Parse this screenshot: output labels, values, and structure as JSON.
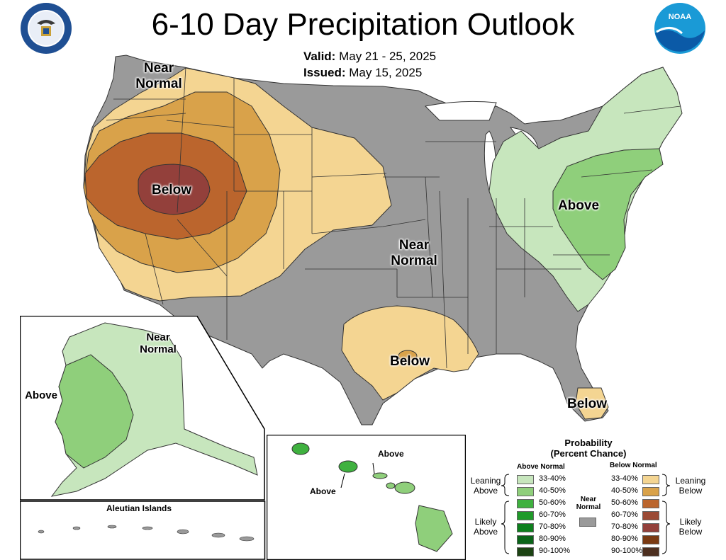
{
  "header": {
    "title": "6-10 Day Precipitation Outlook",
    "valid_label": "Valid:",
    "valid_value": "May 21 - 25, 2025",
    "issued_label": "Issued:",
    "issued_value": "May 15, 2025"
  },
  "logos": {
    "left": "department-of-commerce-seal",
    "right": "noaa-logo",
    "right_text": "NOAA"
  },
  "map_labels": {
    "nw_near_normal": [
      "Near",
      "Normal"
    ],
    "west_below": "Below",
    "central_near_normal": [
      "Near",
      "Normal"
    ],
    "east_above": "Above",
    "texas_below": "Below",
    "florida_below": "Below",
    "alaska_near_normal": [
      "Near",
      "Normal"
    ],
    "alaska_above": "Above",
    "aleutian": "Aleutian Islands",
    "hawaii_above_1": "Above",
    "hawaii_above_2": "Above"
  },
  "legend": {
    "title": [
      "Probability",
      "(Percent Chance)"
    ],
    "above_header": "Above Normal",
    "below_header": "Below Normal",
    "near_label": [
      "Near",
      "Normal"
    ],
    "leaning_above": [
      "Leaning",
      "Above"
    ],
    "likely_above": [
      "Likely",
      "Above"
    ],
    "leaning_below": [
      "Leaning",
      "Below"
    ],
    "likely_below": [
      "Likely",
      "Below"
    ],
    "above_bins": [
      {
        "label": "33-40%",
        "color": "#c7e6bd"
      },
      {
        "label": "40-50%",
        "color": "#8fcf7b"
      },
      {
        "label": "50-60%",
        "color": "#3fb13f"
      },
      {
        "label": "60-70%",
        "color": "#1f9a29"
      },
      {
        "label": "70-80%",
        "color": "#0d7f1d"
      },
      {
        "label": "80-90%",
        "color": "#0a6418"
      },
      {
        "label": "90-100%",
        "color": "#1c4313"
      }
    ],
    "below_bins": [
      {
        "label": "33-40%",
        "color": "#f4d592"
      },
      {
        "label": "40-50%",
        "color": "#d9a24a"
      },
      {
        "label": "50-60%",
        "color": "#bb652d"
      },
      {
        "label": "60-70%",
        "color": "#9b4a35"
      },
      {
        "label": "70-80%",
        "color": "#93403b"
      },
      {
        "label": "80-90%",
        "color": "#7a3a13"
      },
      {
        "label": "90-100%",
        "color": "#4d2f20"
      }
    ],
    "near_color": "#9a9a9a"
  }
}
